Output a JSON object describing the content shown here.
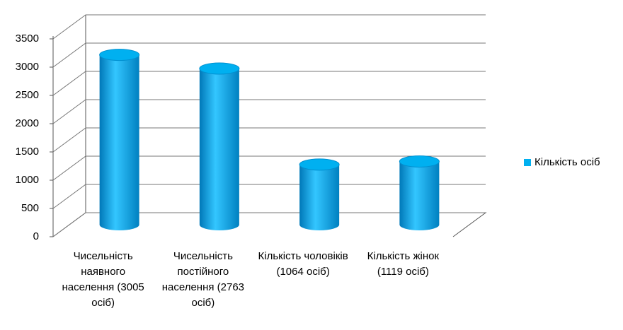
{
  "chart_data": {
    "type": "bar",
    "categories": [
      "Чисельність наявного населення (3005 осіб)",
      "Чисельність постійного населення (2763 осіб)",
      "Кількість чоловіків (1064 осіб)",
      "Кількість жінок (1119 осіб)"
    ],
    "series": [
      {
        "name": "Кількість осіб",
        "color": "#00b0f0",
        "values": [
          3005,
          2763,
          1064,
          1119
        ]
      }
    ],
    "ylim": [
      0,
      3500
    ],
    "yticks": [
      0,
      500,
      1000,
      1500,
      2000,
      2500,
      3000,
      3500
    ],
    "grid": true,
    "legend": "right"
  }
}
